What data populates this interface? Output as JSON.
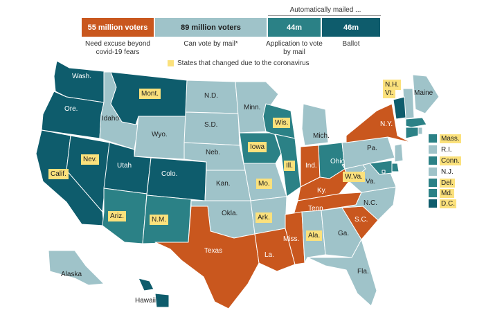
{
  "colors": {
    "orange": "#c9571e",
    "light": "#9fc3c9",
    "mid": "#2b8186",
    "dark": "#0e5c6c",
    "highlight": "#fbe17c",
    "line": "#ffffff"
  },
  "bar": {
    "auto_label": "Automatically mailed ...",
    "segments": [
      {
        "label": "55 million voters",
        "caption": "Need excuse beyond covid-19 fears",
        "color": "orange"
      },
      {
        "label": "89 million voters",
        "caption": "Can vote by mail*",
        "color": "light"
      },
      {
        "label": "44m",
        "caption": "Application to vote by mail",
        "color": "mid"
      },
      {
        "label": "46m",
        "caption": "Ballot",
        "color": "dark"
      }
    ]
  },
  "key_label": "States that changed due to the coronavirus",
  "states": [
    {
      "name": "Wash.",
      "category": "dark",
      "changed": false
    },
    {
      "name": "Ore.",
      "category": "dark",
      "changed": false
    },
    {
      "name": "Calif.",
      "category": "dark",
      "changed": true
    },
    {
      "name": "Nev.",
      "category": "dark",
      "changed": true
    },
    {
      "name": "Idaho",
      "category": "light",
      "changed": false
    },
    {
      "name": "Mont.",
      "category": "dark",
      "changed": true
    },
    {
      "name": "Wyo.",
      "category": "light",
      "changed": false
    },
    {
      "name": "Utah",
      "category": "dark",
      "changed": false
    },
    {
      "name": "Colo.",
      "category": "dark",
      "changed": false
    },
    {
      "name": "Ariz.",
      "category": "mid",
      "changed": true
    },
    {
      "name": "N.M.",
      "category": "mid",
      "changed": true
    },
    {
      "name": "N.D.",
      "category": "light",
      "changed": false
    },
    {
      "name": "S.D.",
      "category": "light",
      "changed": false
    },
    {
      "name": "Neb.",
      "category": "light",
      "changed": false
    },
    {
      "name": "Kan.",
      "category": "light",
      "changed": false
    },
    {
      "name": "Okla.",
      "category": "light",
      "changed": false
    },
    {
      "name": "Texas",
      "category": "orange",
      "changed": false
    },
    {
      "name": "Minn.",
      "category": "light",
      "changed": false
    },
    {
      "name": "Iowa",
      "category": "mid",
      "changed": true
    },
    {
      "name": "Mo.",
      "category": "light",
      "changed": true
    },
    {
      "name": "Ark.",
      "category": "light",
      "changed": true
    },
    {
      "name": "La.",
      "category": "orange",
      "changed": false
    },
    {
      "name": "Wis.",
      "category": "mid",
      "changed": true
    },
    {
      "name": "Ill.",
      "category": "mid",
      "changed": true
    },
    {
      "name": "Mich.",
      "category": "light",
      "changed": false
    },
    {
      "name": "Ind.",
      "category": "orange",
      "changed": false
    },
    {
      "name": "Ohio",
      "category": "mid",
      "changed": false
    },
    {
      "name": "Ky.",
      "category": "orange",
      "changed": false
    },
    {
      "name": "Tenn.",
      "category": "orange",
      "changed": false
    },
    {
      "name": "Miss.",
      "category": "orange",
      "changed": false
    },
    {
      "name": "Ala.",
      "category": "light",
      "changed": true
    },
    {
      "name": "Ga.",
      "category": "light",
      "changed": false
    },
    {
      "name": "Fla.",
      "category": "light",
      "changed": false
    },
    {
      "name": "S.C.",
      "category": "orange",
      "changed": false
    },
    {
      "name": "N.C.",
      "category": "light",
      "changed": false
    },
    {
      "name": "Va.",
      "category": "light",
      "changed": false
    },
    {
      "name": "W.Va.",
      "category": "light",
      "changed": true
    },
    {
      "name": "Pa.",
      "category": "light",
      "changed": false
    },
    {
      "name": "N.Y.",
      "category": "orange",
      "changed": false
    },
    {
      "name": "Maine",
      "category": "light",
      "changed": false
    },
    {
      "name": "N.H.",
      "category": "light",
      "changed": true
    },
    {
      "name": "Vt.",
      "category": "dark",
      "changed": true
    },
    {
      "name": "Alaska",
      "category": "light",
      "changed": false
    },
    {
      "name": "Hawaii",
      "category": "dark",
      "changed": false
    }
  ],
  "small_states": [
    {
      "name": "Mass.",
      "category": "mid",
      "changed": true
    },
    {
      "name": "R.I.",
      "category": "light",
      "changed": false
    },
    {
      "name": "Conn.",
      "category": "mid",
      "changed": true
    },
    {
      "name": "N.J.",
      "category": "light",
      "changed": false
    },
    {
      "name": "Del.",
      "category": "mid",
      "changed": true
    },
    {
      "name": "Md.",
      "category": "mid",
      "changed": true
    },
    {
      "name": "D.C.",
      "category": "dark",
      "changed": true
    }
  ]
}
